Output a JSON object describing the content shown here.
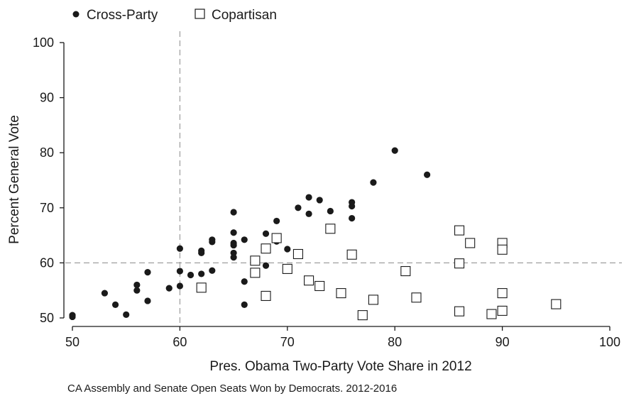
{
  "chart_data": {
    "type": "scatter",
    "xlabel": "Pres. Obama Two-Party Vote Share in 2012",
    "ylabel": "Percent General Vote",
    "caption": "CA Assembly and Senate Open Seats Won by Democrats. 2012-2016",
    "xlim": [
      50,
      100
    ],
    "ylim": [
      50,
      100
    ],
    "xticks": [
      50,
      60,
      70,
      80,
      90,
      100
    ],
    "yticks": [
      50,
      60,
      70,
      80,
      90,
      100
    ],
    "reference_lines": {
      "x": 60,
      "y": 60
    },
    "legend": {
      "placement": "top-left"
    },
    "grid": false,
    "series": [
      {
        "name": "Cross-Party",
        "marker": "filled-circle",
        "color": "#1a1a1a",
        "points": [
          [
            50.0,
            50.2
          ],
          [
            50.0,
            50.5
          ],
          [
            53.0,
            54.5
          ],
          [
            54.0,
            52.4
          ],
          [
            55.0,
            50.6
          ],
          [
            56.0,
            56.0
          ],
          [
            56.0,
            55.0
          ],
          [
            57.0,
            58.3
          ],
          [
            57.0,
            53.1
          ],
          [
            59.0,
            55.4
          ],
          [
            60.0,
            62.6
          ],
          [
            60.0,
            58.5
          ],
          [
            60.0,
            55.8
          ],
          [
            61.0,
            57.8
          ],
          [
            62.0,
            62.2
          ],
          [
            62.0,
            61.8
          ],
          [
            62.0,
            58.0
          ],
          [
            63.0,
            64.2
          ],
          [
            63.0,
            63.8
          ],
          [
            63.0,
            58.6
          ],
          [
            65.0,
            69.2
          ],
          [
            65.0,
            65.5
          ],
          [
            65.0,
            63.6
          ],
          [
            65.0,
            63.2
          ],
          [
            65.0,
            61.8
          ],
          [
            65.0,
            61.0
          ],
          [
            66.0,
            64.2
          ],
          [
            66.0,
            56.6
          ],
          [
            66.0,
            52.4
          ],
          [
            68.0,
            65.3
          ],
          [
            68.0,
            59.5
          ],
          [
            69.0,
            67.6
          ],
          [
            69.0,
            63.9
          ],
          [
            70.0,
            62.5
          ],
          [
            71.0,
            70.0
          ],
          [
            72.0,
            71.9
          ],
          [
            72.0,
            68.9
          ],
          [
            73.0,
            71.4
          ],
          [
            74.0,
            69.4
          ],
          [
            76.0,
            71.0
          ],
          [
            76.0,
            70.3
          ],
          [
            76.0,
            68.1
          ],
          [
            78.0,
            74.6
          ],
          [
            80.0,
            80.4
          ],
          [
            83.0,
            76.0
          ]
        ]
      },
      {
        "name": "Copartisan",
        "marker": "open-square",
        "color": "#1a1a1a",
        "points": [
          [
            62.0,
            55.5
          ],
          [
            67.0,
            60.4
          ],
          [
            67.0,
            58.2
          ],
          [
            68.0,
            62.6
          ],
          [
            68.0,
            54.0
          ],
          [
            69.0,
            64.5
          ],
          [
            70.0,
            58.9
          ],
          [
            71.0,
            61.6
          ],
          [
            72.0,
            56.8
          ],
          [
            73.0,
            55.8
          ],
          [
            74.0,
            66.2
          ],
          [
            75.0,
            54.5
          ],
          [
            76.0,
            61.5
          ],
          [
            77.0,
            50.5
          ],
          [
            78.0,
            53.3
          ],
          [
            81.0,
            58.5
          ],
          [
            82.0,
            53.7
          ],
          [
            86.0,
            65.9
          ],
          [
            86.0,
            59.9
          ],
          [
            86.0,
            51.2
          ],
          [
            87.0,
            63.6
          ],
          [
            89.0,
            50.7
          ],
          [
            90.0,
            63.6
          ],
          [
            90.0,
            62.4
          ],
          [
            90.0,
            54.5
          ],
          [
            90.0,
            51.3
          ],
          [
            95.0,
            52.5
          ]
        ]
      }
    ]
  }
}
